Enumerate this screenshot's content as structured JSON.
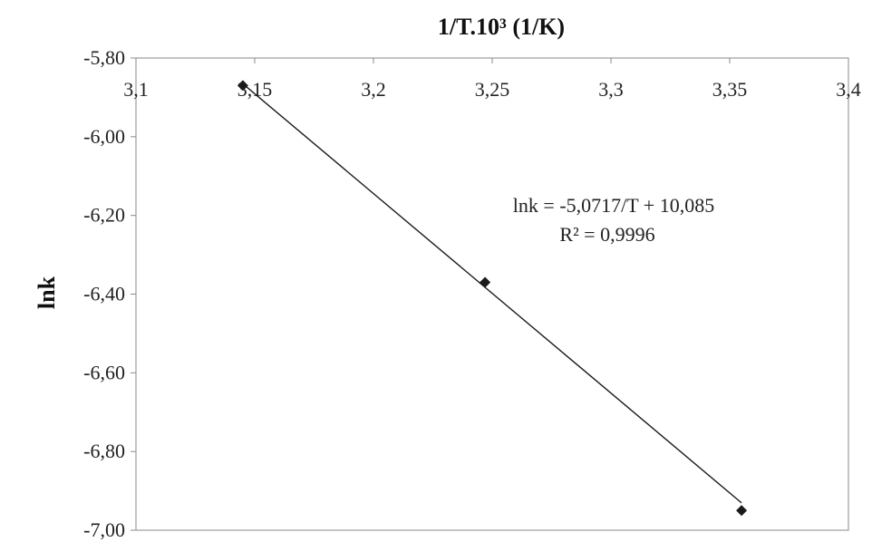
{
  "chart_data": {
    "type": "scatter",
    "xlabel": "1/T.10³ (1/K)",
    "ylabel": "lnk",
    "xlim": [
      3.1,
      3.4
    ],
    "ylim": [
      -7.0,
      -5.8
    ],
    "x_ticks": [
      "3,1",
      "3,15",
      "3,2",
      "3,25",
      "3,3",
      "3,35",
      "3,4"
    ],
    "y_ticks": [
      "-5,80",
      "-6,00",
      "-6,20",
      "-6,40",
      "-6,60",
      "-6,80",
      "-7,00"
    ],
    "x_axis_position": "top",
    "grid": false,
    "legend": "none",
    "series": [
      {
        "x": [
          3.145,
          3.247,
          3.355
        ],
        "y": [
          -5.87,
          -6.37,
          -6.95
        ],
        "marker": "diamond",
        "color": "#1a1a1a"
      }
    ],
    "trendline": {
      "type": "linear",
      "slope": -5.0717,
      "intercept": 10.085,
      "x_range": [
        3.145,
        3.355
      ],
      "color": "#1a1a1a"
    },
    "annotations": [
      "lnk = -5,0717/T + 10,085",
      "R² = 0,9996"
    ]
  }
}
